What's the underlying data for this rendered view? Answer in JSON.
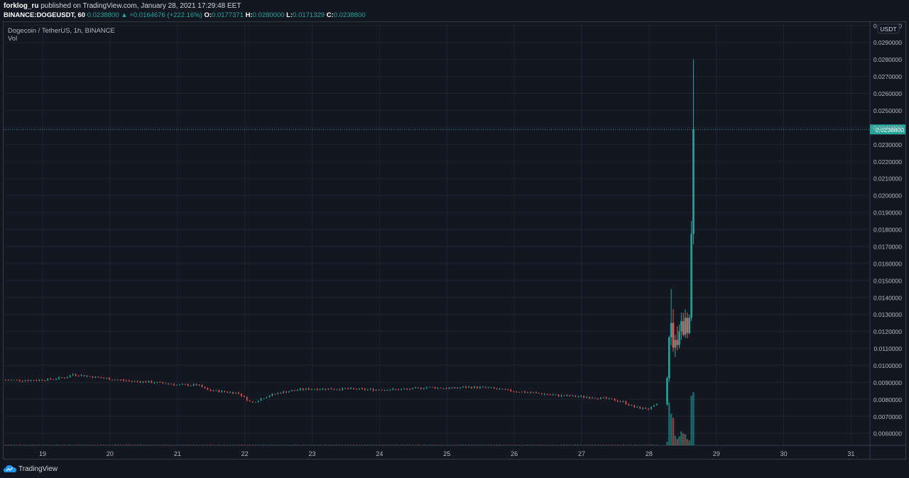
{
  "header": {
    "author": "forklog_ru",
    "published_text": "published on TradingView.com, January 28, 2021 17:29:48 EET",
    "symbol": "BINANCE:DOGEUSDT, 60",
    "last": "0.0238800",
    "change_arrow": "▲",
    "change": "+0.0164676 (+222.16%)",
    "o_label": "O:",
    "o_value": "0.0177371",
    "h_label": "H:",
    "h_value": "0.0280000",
    "l_label": "L:",
    "l_value": "0.0171329",
    "c_label": "C:",
    "c_value": "0.0238800"
  },
  "pane": {
    "title": "Dogecoin / TetherUS, 1h, BINANCE",
    "vol_label": "Vol"
  },
  "footer": {
    "brand": "TradingView",
    "logo_icon": "tradingview-cloud-icon"
  },
  "colors": {
    "background": "#131722",
    "grid": "#1e222d",
    "up": "#26a69a",
    "down": "#ef5350",
    "text": "#b2b5be"
  },
  "chart_data": {
    "type": "candlestick",
    "symbol": "DOGEUSDT",
    "interval": "1h",
    "currency": "USDT",
    "y_ticks": [
      "0.0060000",
      "0.0070000",
      "0.0080000",
      "0.0090000",
      "0.0100000",
      "0.0110000",
      "0.0120000",
      "0.0130000",
      "0.0140000",
      "0.0150000",
      "0.0160000",
      "0.0170000",
      "0.0180000",
      "0.0190000",
      "0.0200000",
      "0.0210000",
      "0.0220000",
      "0.0230000",
      "0.0240000",
      "0.0250000",
      "0.0260000",
      "0.0270000",
      "0.0280000",
      "0.0290000",
      "0.0300000"
    ],
    "ylim": [
      0.0053,
      0.0302
    ],
    "x_ticks": [
      "19",
      "20",
      "21",
      "22",
      "23",
      "24",
      "25",
      "26",
      "27",
      "28",
      "29",
      "30",
      "31"
    ],
    "x_tick_values": [
      19,
      20,
      21,
      22,
      23,
      24,
      25,
      26,
      27,
      28,
      29,
      30,
      31
    ],
    "xlim": [
      18.42,
      31.28
    ],
    "last_price": "0.0238800",
    "last_price_value": 0.02388,
    "price_path": [
      [
        18.45,
        0.00915
      ],
      [
        18.8,
        0.00912
      ],
      [
        19.1,
        0.00918
      ],
      [
        19.35,
        0.0093
      ],
      [
        19.45,
        0.00948
      ],
      [
        19.7,
        0.00935
      ],
      [
        20.0,
        0.0092
      ],
      [
        20.3,
        0.00908
      ],
      [
        20.6,
        0.00902
      ],
      [
        20.9,
        0.00892
      ],
      [
        21.0,
        0.00885
      ],
      [
        21.3,
        0.00885
      ],
      [
        21.45,
        0.00855
      ],
      [
        21.7,
        0.00845
      ],
      [
        21.9,
        0.00838
      ],
      [
        22.1,
        0.0078
      ],
      [
        22.3,
        0.00815
      ],
      [
        22.5,
        0.00838
      ],
      [
        22.8,
        0.00858
      ],
      [
        23.0,
        0.00862
      ],
      [
        23.3,
        0.00862
      ],
      [
        23.5,
        0.00862
      ],
      [
        23.8,
        0.00858
      ],
      [
        24.0,
        0.00858
      ],
      [
        24.3,
        0.00858
      ],
      [
        24.5,
        0.00862
      ],
      [
        24.7,
        0.00872
      ],
      [
        25.0,
        0.00865
      ],
      [
        25.3,
        0.00872
      ],
      [
        25.6,
        0.0087
      ],
      [
        25.8,
        0.00858
      ],
      [
        26.0,
        0.00848
      ],
      [
        26.3,
        0.00838
      ],
      [
        26.6,
        0.00825
      ],
      [
        26.9,
        0.00818
      ],
      [
        27.2,
        0.00812
      ],
      [
        27.4,
        0.00802
      ],
      [
        27.6,
        0.00788
      ],
      [
        27.8,
        0.00752
      ],
      [
        28.0,
        0.00745
      ],
      [
        28.15,
        0.00775
      ]
    ],
    "spike_candles": [
      {
        "t": 28.27,
        "o": 0.00772,
        "h": 0.00935,
        "l": 0.00762,
        "c": 0.00925
      },
      {
        "t": 28.3,
        "o": 0.00925,
        "h": 0.01175,
        "l": 0.00905,
        "c": 0.01165
      },
      {
        "t": 28.33,
        "o": 0.01165,
        "h": 0.0145,
        "l": 0.0112,
        "c": 0.0125
      },
      {
        "t": 28.36,
        "o": 0.0125,
        "h": 0.0133,
        "l": 0.0108,
        "c": 0.01105
      },
      {
        "t": 28.39,
        "o": 0.01105,
        "h": 0.0118,
        "l": 0.0105,
        "c": 0.0115
      },
      {
        "t": 28.42,
        "o": 0.0115,
        "h": 0.0123,
        "l": 0.0109,
        "c": 0.0112
      },
      {
        "t": 28.45,
        "o": 0.0112,
        "h": 0.0124,
        "l": 0.011,
        "c": 0.012
      },
      {
        "t": 28.48,
        "o": 0.012,
        "h": 0.0131,
        "l": 0.0115,
        "c": 0.0126
      },
      {
        "t": 28.51,
        "o": 0.0126,
        "h": 0.0131,
        "l": 0.0117,
        "c": 0.0118
      },
      {
        "t": 28.54,
        "o": 0.0118,
        "h": 0.0133,
        "l": 0.0116,
        "c": 0.0128
      },
      {
        "t": 28.57,
        "o": 0.0128,
        "h": 0.0131,
        "l": 0.0116,
        "c": 0.0119
      },
      {
        "t": 28.6,
        "o": 0.0119,
        "h": 0.013,
        "l": 0.0118,
        "c": 0.0128
      },
      {
        "t": 28.63,
        "o": 0.0128,
        "h": 0.0185,
        "l": 0.0126,
        "c": 0.01773
      },
      {
        "t": 28.66,
        "o": 0.01773,
        "h": 0.028,
        "l": 0.01713,
        "c": 0.02388
      }
    ],
    "volume_spike": [
      0.05,
      0.62,
      0.46,
      0.4,
      0.14,
      0.09,
      0.13,
      0.2,
      0.17,
      0.16,
      0.09,
      0.07,
      0.72,
      0.77
    ]
  }
}
